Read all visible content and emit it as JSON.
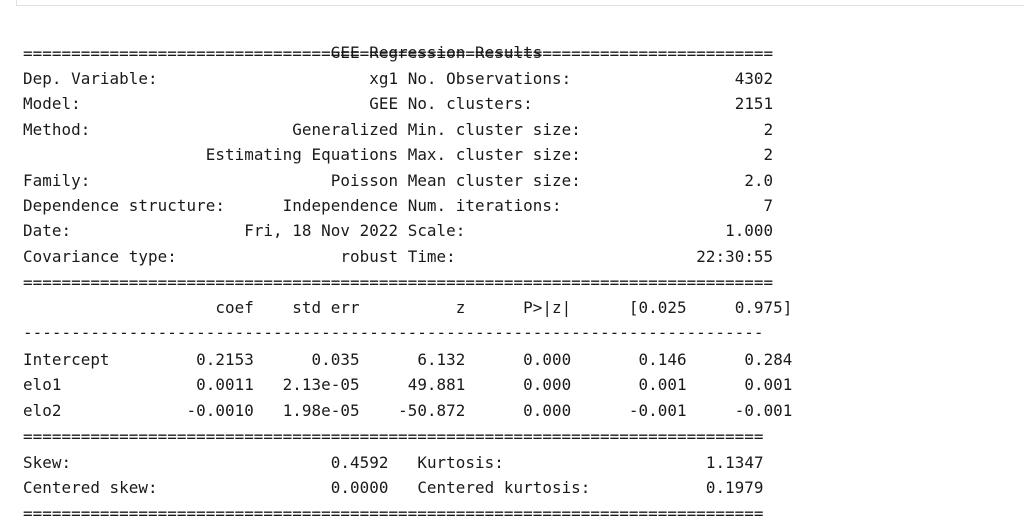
{
  "title": "GEE Regression Results",
  "sep_eq_full": "==============================================================================",
  "sep_eq_short": "=============================================================================",
  "sep_dash": "-----------------------------------------------------------------------------",
  "top": [
    {
      "l": "Dep. Variable:",
      "lv": "xg1",
      "r": "No. Observations:",
      "rv": "4302"
    },
    {
      "l": "Model:",
      "lv": "GEE",
      "r": "No. clusters:",
      "rv": "2151"
    },
    {
      "l": "Method:",
      "lv": "Generalized",
      "r": "Min. cluster size:",
      "rv": "2"
    },
    {
      "l": "",
      "lv": "Estimating Equations",
      "r": "Max. cluster size:",
      "rv": "2"
    },
    {
      "l": "Family:",
      "lv": "Poisson",
      "r": "Mean cluster size:",
      "rv": "2.0"
    },
    {
      "l": "Dependence structure:",
      "lv": "Independence",
      "r": "Num. iterations:",
      "rv": "7"
    },
    {
      "l": "Date:",
      "lv": "Fri, 18 Nov 2022",
      "r": "Scale:",
      "rv": "1.000"
    },
    {
      "l": "Covariance type:",
      "lv": "robust",
      "r": "Time:",
      "rv": "22:30:55"
    }
  ],
  "coef_header": [
    "",
    "coef",
    "std err",
    "z",
    "P>|z|",
    "[0.025",
    "0.975]"
  ],
  "coef_rows": [
    [
      "Intercept",
      "0.2153",
      "0.035",
      "6.132",
      "0.000",
      "0.146",
      "0.284"
    ],
    [
      "elo1",
      "0.0011",
      "2.13e-05",
      "49.881",
      "0.000",
      "0.001",
      "0.001"
    ],
    [
      "elo2",
      "-0.0010",
      "1.98e-05",
      "-50.872",
      "0.000",
      "-0.001",
      "-0.001"
    ]
  ],
  "bottom": [
    {
      "l": "Skew:",
      "lv": "0.4592",
      "r": "Kurtosis:",
      "rv": "1.1347"
    },
    {
      "l": "Centered skew:",
      "lv": "0.0000",
      "r": "Centered kurtosis:",
      "rv": "0.1979"
    }
  ]
}
